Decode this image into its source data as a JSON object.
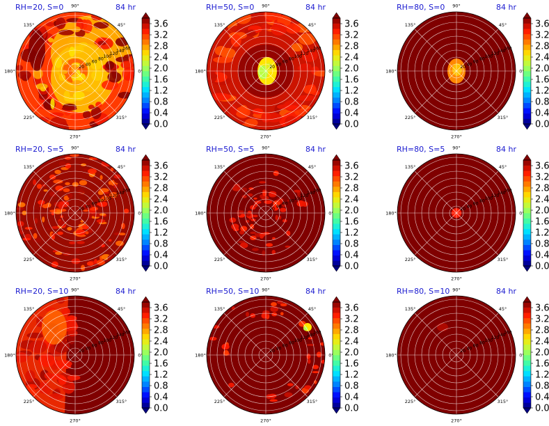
{
  "time_label": "84 hr",
  "angle_ticks": [
    "0°",
    "45°",
    "90°",
    "135°",
    "180°",
    "225°",
    "270°",
    "315°"
  ],
  "radial_ticks": [
    "20",
    "40",
    "60",
    "80",
    "100",
    "120",
    "140",
    "160"
  ],
  "colorbar": {
    "ticks": [
      "0.0",
      "0.4",
      "0.8",
      "1.2",
      "1.6",
      "2.0",
      "2.4",
      "2.8",
      "3.2",
      "3.6"
    ],
    "min": 0.0,
    "max": 3.8,
    "colormap": "jet",
    "extend": "both"
  },
  "panels": [
    {
      "title": "RH=20, S=0"
    },
    {
      "title": "RH=50, S=0"
    },
    {
      "title": "RH=80, S=0"
    },
    {
      "title": "RH=20, S=5"
    },
    {
      "title": "RH=50, S=5"
    },
    {
      "title": "RH=80, S=5"
    },
    {
      "title": "RH=20, S=10"
    },
    {
      "title": "RH=50, S=10"
    },
    {
      "title": "RH=80, S=10"
    }
  ],
  "chart_data": {
    "type": "heatmap",
    "projection": "polar",
    "rows": [
      "S=0",
      "S=5",
      "S=10"
    ],
    "cols": [
      "RH=20",
      "RH=50",
      "RH=80"
    ],
    "radial_range": [
      0,
      160
    ],
    "colorbar_range": [
      0.0,
      3.8
    ],
    "grid": true
  }
}
